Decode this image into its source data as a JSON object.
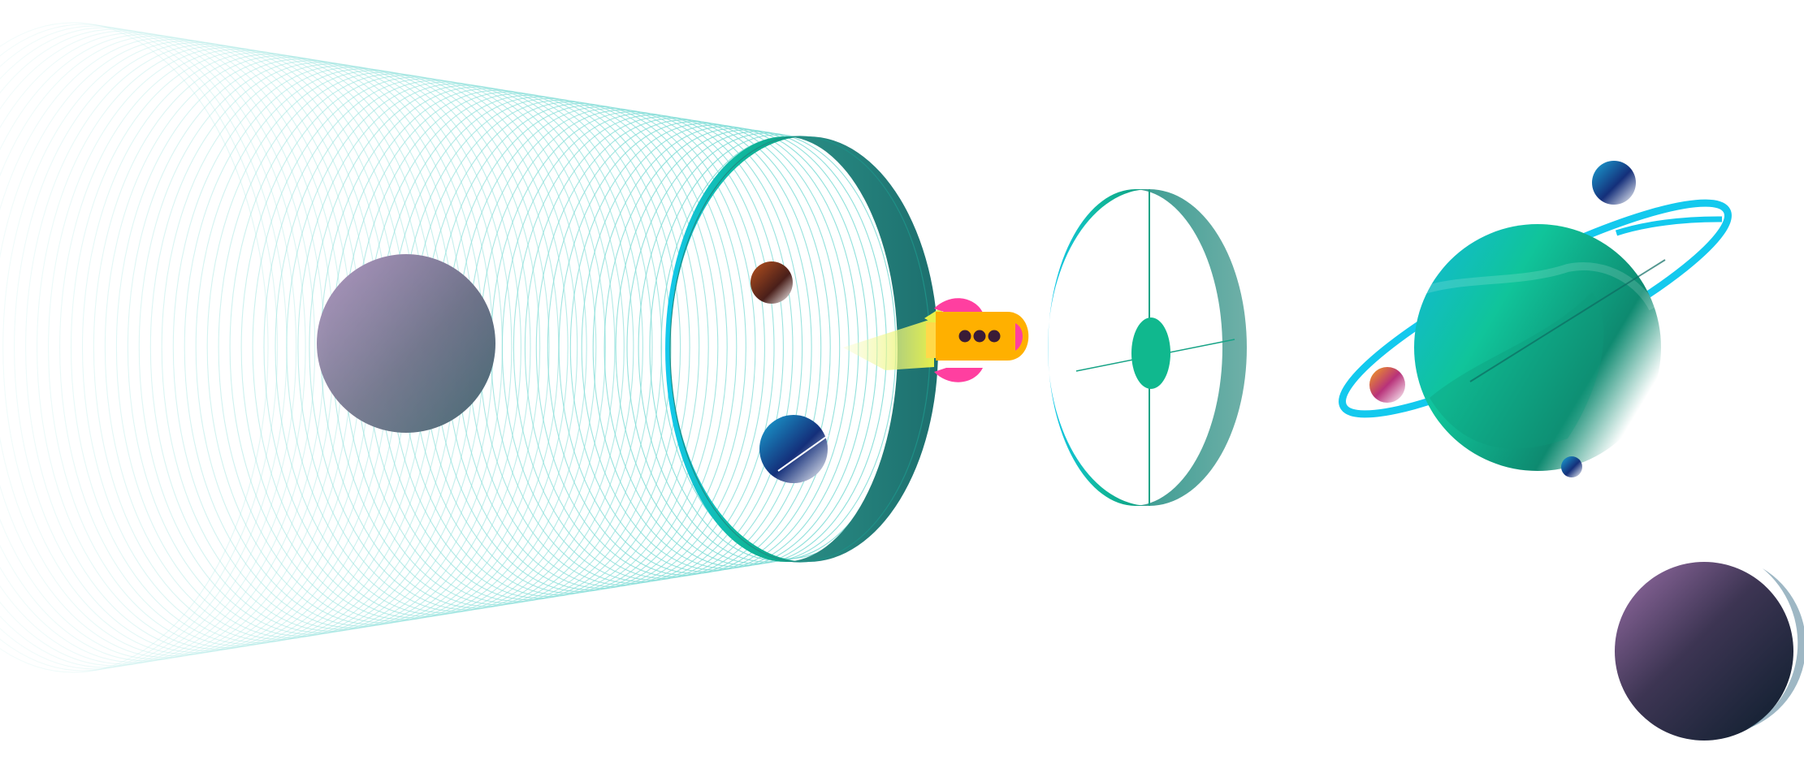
{
  "scene": {
    "background": "#ffffff",
    "palette": {
      "teal": "#12a58a",
      "cyan": "#13c9ee",
      "dark_teal": "#1f7d78",
      "tunnel_line": "#7fdcd6",
      "purple": "#8a6fa0",
      "navy": "#12213a",
      "rocket_yellow": "#ffb000",
      "rocket_pink": "#ff3fa0",
      "flame_yellow": "#eef36a"
    },
    "objects": [
      "tunnel-icon",
      "portal-ring-icon",
      "rocket-icon",
      "gate-ring-icon",
      "ringed-planet-icon",
      "small-planet-icon",
      "moon-icon",
      "purple-planet-icon"
    ]
  }
}
